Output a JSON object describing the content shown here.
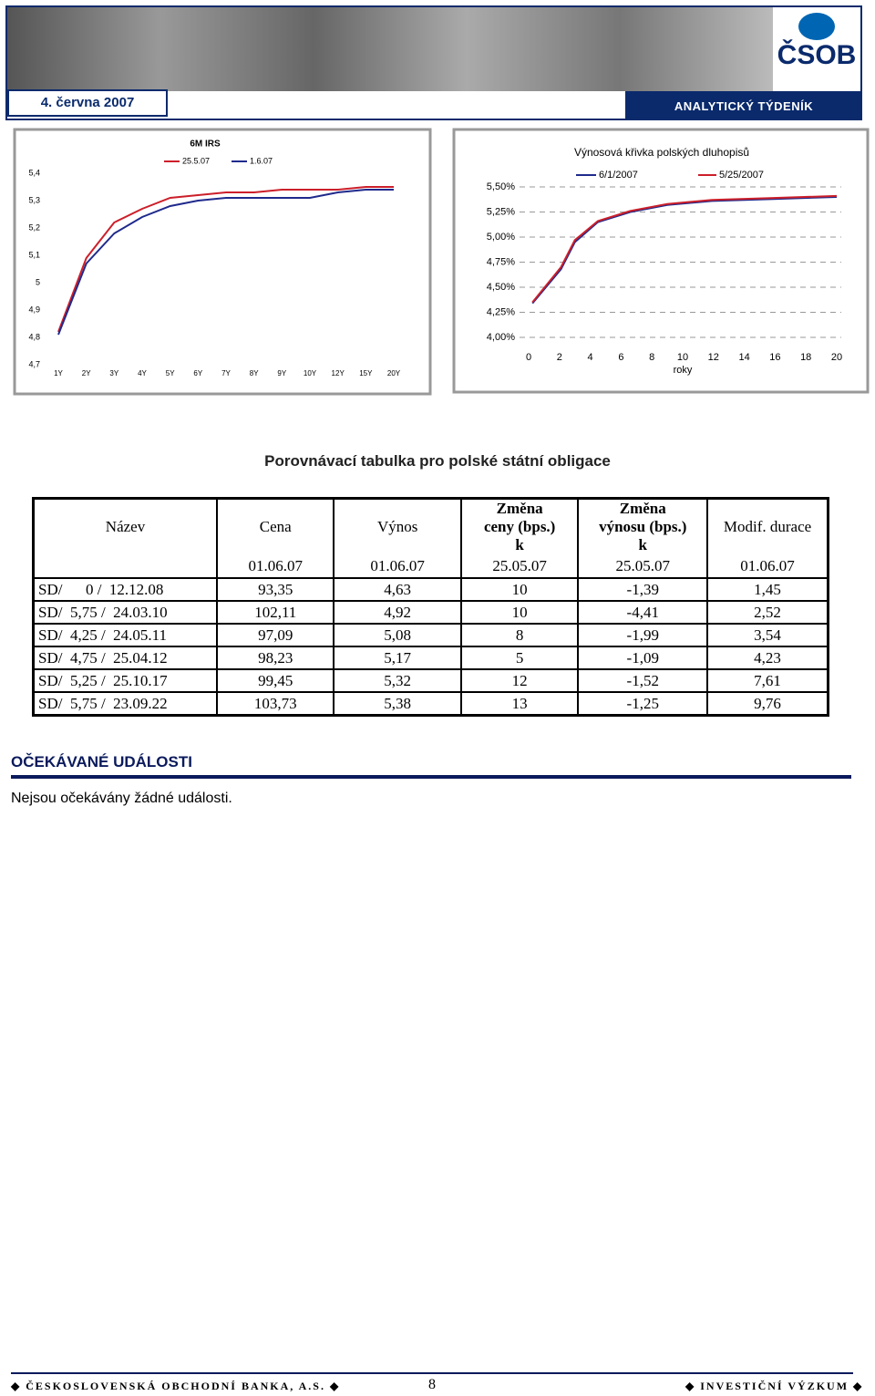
{
  "header": {
    "date": "4. června 2007",
    "logo": "ČSOB",
    "publication": "ANALYTICKÝ TÝDENÍK"
  },
  "chart_data": [
    {
      "type": "line",
      "title": "6M IRS",
      "categories": [
        "1Y",
        "2Y",
        "3Y",
        "4Y",
        "5Y",
        "6Y",
        "7Y",
        "8Y",
        "9Y",
        "10Y",
        "12Y",
        "15Y",
        "20Y"
      ],
      "series": [
        {
          "name": "25.5.07",
          "color": "#cc1f2a",
          "values": [
            4.82,
            5.09,
            5.22,
            5.27,
            5.31,
            5.32,
            5.33,
            5.33,
            5.34,
            5.34,
            5.34,
            5.35,
            5.35
          ]
        },
        {
          "name": "1.6.07",
          "color": "#1f2a8c",
          "values": [
            4.81,
            5.07,
            5.18,
            5.24,
            5.28,
            5.3,
            5.31,
            5.31,
            5.31,
            5.31,
            5.33,
            5.34,
            5.34
          ]
        }
      ],
      "ylim": [
        4.7,
        5.4
      ],
      "yticks": [
        {
          "value": 4.7,
          "label": "4,7"
        },
        {
          "value": 4.8,
          "label": "4,8"
        },
        {
          "value": 4.9,
          "label": "4,9"
        },
        5,
        {
          "value": 5.1,
          "label": "5,1"
        },
        {
          "value": 5.2,
          "label": "5,2"
        },
        {
          "value": 5.3,
          "label": "5,3"
        },
        {
          "value": 5.4,
          "label": "5,4"
        }
      ],
      "grid": false
    },
    {
      "type": "line",
      "title": "Výnosová křivka polských dluhopisů",
      "x_label": "roky",
      "x": [
        0.25,
        2.1,
        3.0,
        4.5,
        6.6,
        9.0,
        11.9,
        15.9,
        20
      ],
      "series": [
        {
          "name": "6/1/2007",
          "color": "#1f2a8c",
          "values": [
            4.34,
            4.68,
            4.95,
            5.15,
            5.25,
            5.32,
            5.36,
            5.38,
            5.4
          ]
        },
        {
          "name": "5/25/2007",
          "color": "#cc1f2a",
          "values": [
            4.35,
            4.7,
            4.97,
            5.16,
            5.26,
            5.33,
            5.37,
            5.39,
            5.41
          ]
        }
      ],
      "xlim": [
        0,
        20
      ],
      "xticks": [
        0,
        2,
        4,
        6,
        8,
        10,
        12,
        14,
        16,
        18,
        20
      ],
      "ylim": [
        4.0,
        5.5
      ],
      "yticks": [
        {
          "value": 4.0,
          "label": "4,00%"
        },
        {
          "value": 4.25,
          "label": "4,25%"
        },
        {
          "value": 4.5,
          "label": "4,50%"
        },
        {
          "value": 4.75,
          "label": "4,75%"
        },
        {
          "value": 5.0,
          "label": "5,00%"
        },
        {
          "value": 5.25,
          "label": "5,25%"
        },
        {
          "value": 5.5,
          "label": "5,50%"
        }
      ],
      "grid": true
    }
  ],
  "table": {
    "title": "Porovnávací tabulka pro polské státní obligace",
    "columns": [
      "Název",
      "Cena",
      "Výnos",
      "Změna ceny (bps.) k",
      "Změna výnosu (bps.) k",
      "Modif. durace"
    ],
    "dates": [
      "01.06.07",
      "01.06.07",
      "25.05.07",
      "25.05.07",
      "01.06.07"
    ],
    "rows": [
      [
        "SD/      0 /  12.12.08",
        "93,35",
        "4,63",
        "10",
        "-1,39",
        "1,45"
      ],
      [
        "SD/  5,75 /  24.03.10",
        "102,11",
        "4,92",
        "10",
        "-4,41",
        "2,52"
      ],
      [
        "SD/  4,25 /  24.05.11",
        "97,09",
        "5,08",
        "8",
        "-1,99",
        "3,54"
      ],
      [
        "SD/  4,75 /  25.04.12",
        "98,23",
        "5,17",
        "5",
        "-1,09",
        "4,23"
      ],
      [
        "SD/  5,25 /  25.10.17",
        "99,45",
        "5,32",
        "12",
        "-1,52",
        "7,61"
      ],
      [
        "SD/  5,75 /  23.09.22",
        "103,73",
        "5,38",
        "13",
        "-1,25",
        "9,76"
      ]
    ]
  },
  "events": {
    "title": "OČEKÁVANÉ UDÁLOSTI",
    "text": "Nejsou očekávány žádné události."
  },
  "footer": {
    "left": "ČESKOSLOVENSKÁ OBCHODNÍ BANKA, A.S.",
    "page": "8",
    "right": "INVESTIČNÍ VÝZKUM"
  }
}
